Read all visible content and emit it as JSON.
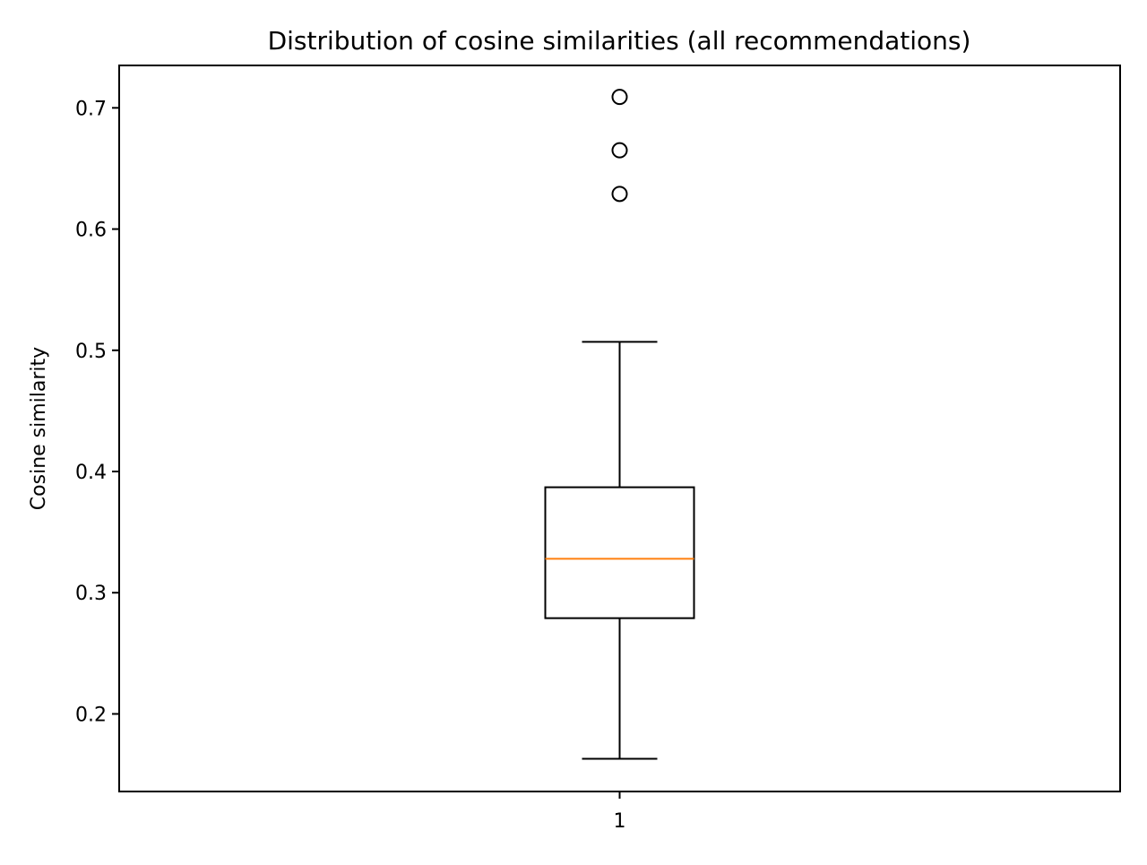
{
  "chart_data": {
    "type": "box",
    "title": "Distribution of cosine similarities (all recommendations)",
    "xlabel": "",
    "ylabel": "Cosine similarity",
    "categories": [
      "1"
    ],
    "ylim": [
      0.136,
      0.735
    ],
    "yticks": [
      0.2,
      0.3,
      0.4,
      0.5,
      0.6,
      0.7
    ],
    "ytick_labels": [
      "0.2",
      "0.3",
      "0.4",
      "0.5",
      "0.6",
      "0.7"
    ],
    "grid": false,
    "legend": "none",
    "boxes": [
      {
        "category": "1",
        "whisker_low": 0.163,
        "q1": 0.279,
        "median": 0.328,
        "q3": 0.387,
        "whisker_high": 0.507,
        "outliers": [
          0.629,
          0.665,
          0.709
        ]
      }
    ],
    "colors": {
      "box": "#000000",
      "median": "#ff7f0e",
      "outlier": "#000000"
    }
  }
}
